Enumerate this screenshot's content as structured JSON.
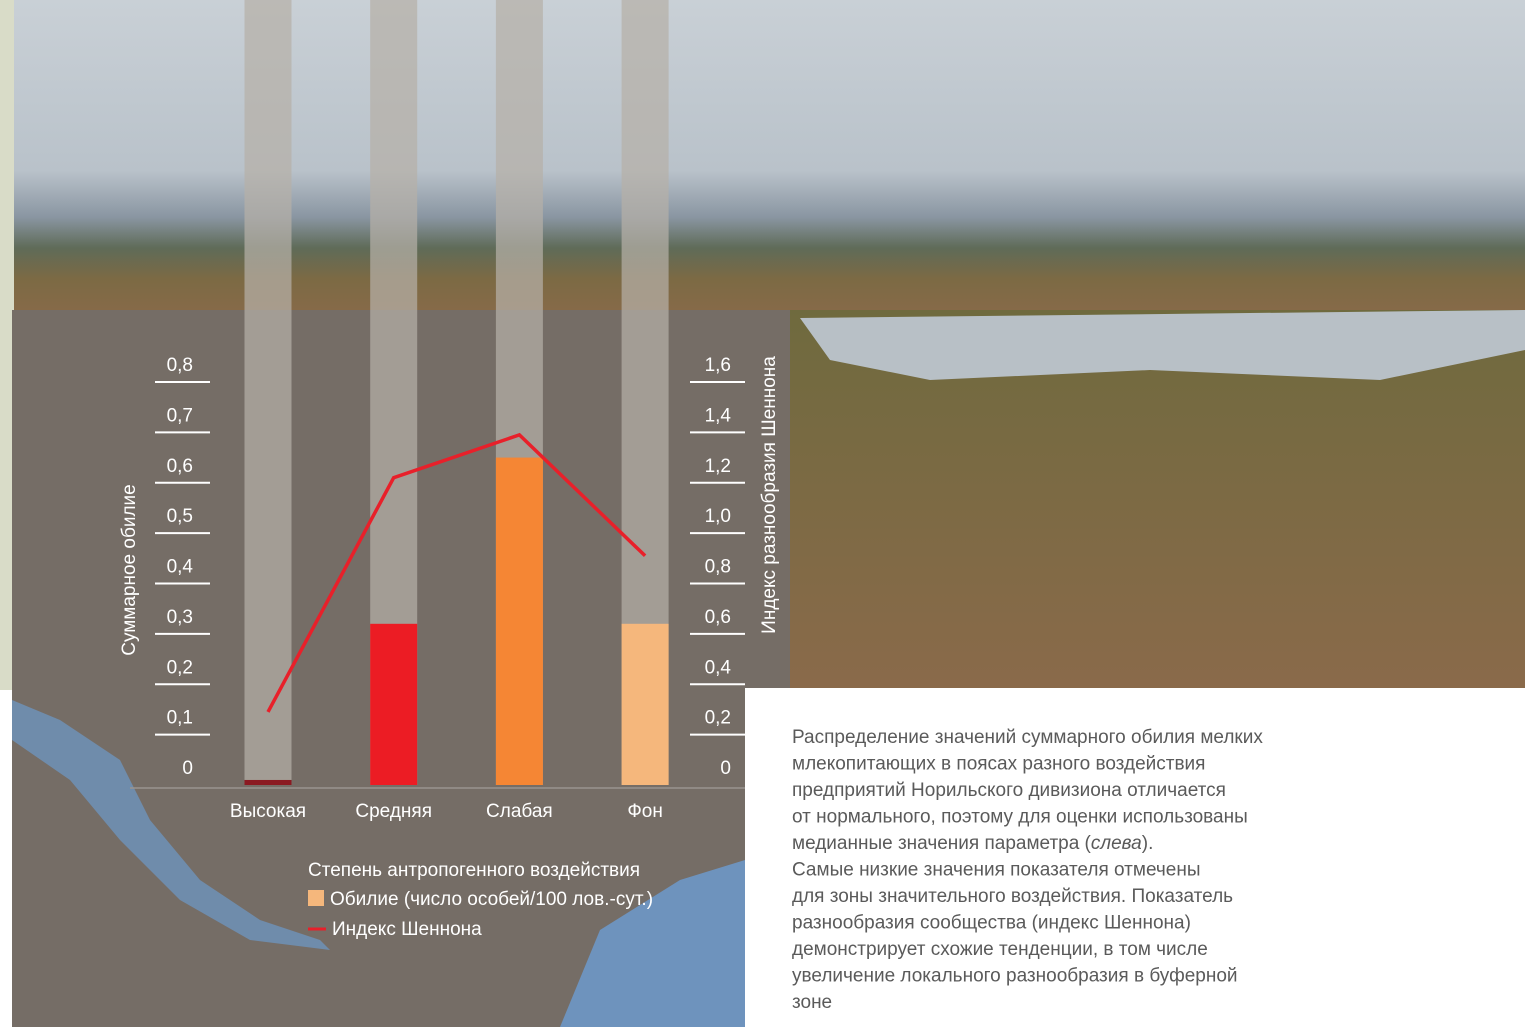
{
  "chart_data": {
    "type": "bar_line",
    "categories": [
      "Высокая",
      "Средняя",
      "Слабая",
      "Фон"
    ],
    "x_label": "Степень антропогенного воздействия",
    "y_label": "Суммарное обилие",
    "y2_label": "Индекс разнообразия Шеннона",
    "ylim": [
      0,
      0.8
    ],
    "yticks": [
      0,
      {
        "value": 0.1,
        "label": "0,1"
      },
      {
        "value": 0.2,
        "label": "0,2"
      },
      {
        "value": 0.3,
        "label": "0,3"
      },
      {
        "value": 0.4,
        "label": "0,4"
      },
      {
        "value": 0.5,
        "label": "0,5"
      },
      {
        "value": 0.6,
        "label": "0,6"
      },
      {
        "value": 0.7,
        "label": "0,7"
      },
      {
        "value": 0.8,
        "label": "0,8"
      }
    ],
    "y2lim": [
      0,
      1.6
    ],
    "y2ticks": [
      0,
      {
        "value": 0.2,
        "label": "0,2"
      },
      {
        "value": 0.4,
        "label": "0,4"
      },
      {
        "value": 0.6,
        "label": "0,6"
      },
      {
        "value": 0.8,
        "label": "0,8"
      },
      {
        "value": 1.0,
        "label": "1,0"
      },
      {
        "value": 1.2,
        "label": "1,2"
      },
      {
        "value": 1.4,
        "label": "1,4"
      },
      {
        "value": 1.6,
        "label": "1,6"
      }
    ],
    "series": [
      {
        "name": "Обилие (число особей/100 лов.-сут.)",
        "type": "bar",
        "color": "#f5b77c",
        "colors": [
          "#8b1a22",
          "#ec1c24",
          "#f58634",
          "#f5b77c"
        ],
        "values": [
          0.01,
          0.32,
          0.65,
          0.32
        ]
      },
      {
        "name": "Индекс Шеннона",
        "type": "line",
        "axis": "y2",
        "color": "#e8202a",
        "values": [
          0.29,
          1.22,
          1.39,
          0.91
        ]
      }
    ],
    "caption": [
      [
        {
          "text": "Распределение значений суммарного обилия мелких"
        }
      ],
      [
        {
          "text": "млекопитающих в поясах разного воздействия"
        }
      ],
      [
        {
          "text": "предприятий Норильского дивизиона отличается"
        }
      ],
      [
        {
          "text": "от нормального, поэтому для оценки использованы"
        }
      ],
      [
        {
          "text": "медианные значения параметра ("
        },
        {
          "text": "слева",
          "italic": true
        },
        {
          "text": ")."
        }
      ],
      [
        {
          "text": "Самые низкие значения показателя отмечены"
        }
      ],
      [
        {
          "text": "для зоны значительного воздействия. Показатель"
        }
      ],
      [
        {
          "text": "разнообразия сообщества (индекс Шеннона)"
        }
      ],
      [
        {
          "text": "демонстрирует схожие тенденции, в том числе"
        }
      ],
      [
        {
          "text": "увеличение локального разнообразия в буферной"
        }
      ],
      [
        {
          "text": "зоне"
        }
      ]
    ]
  }
}
